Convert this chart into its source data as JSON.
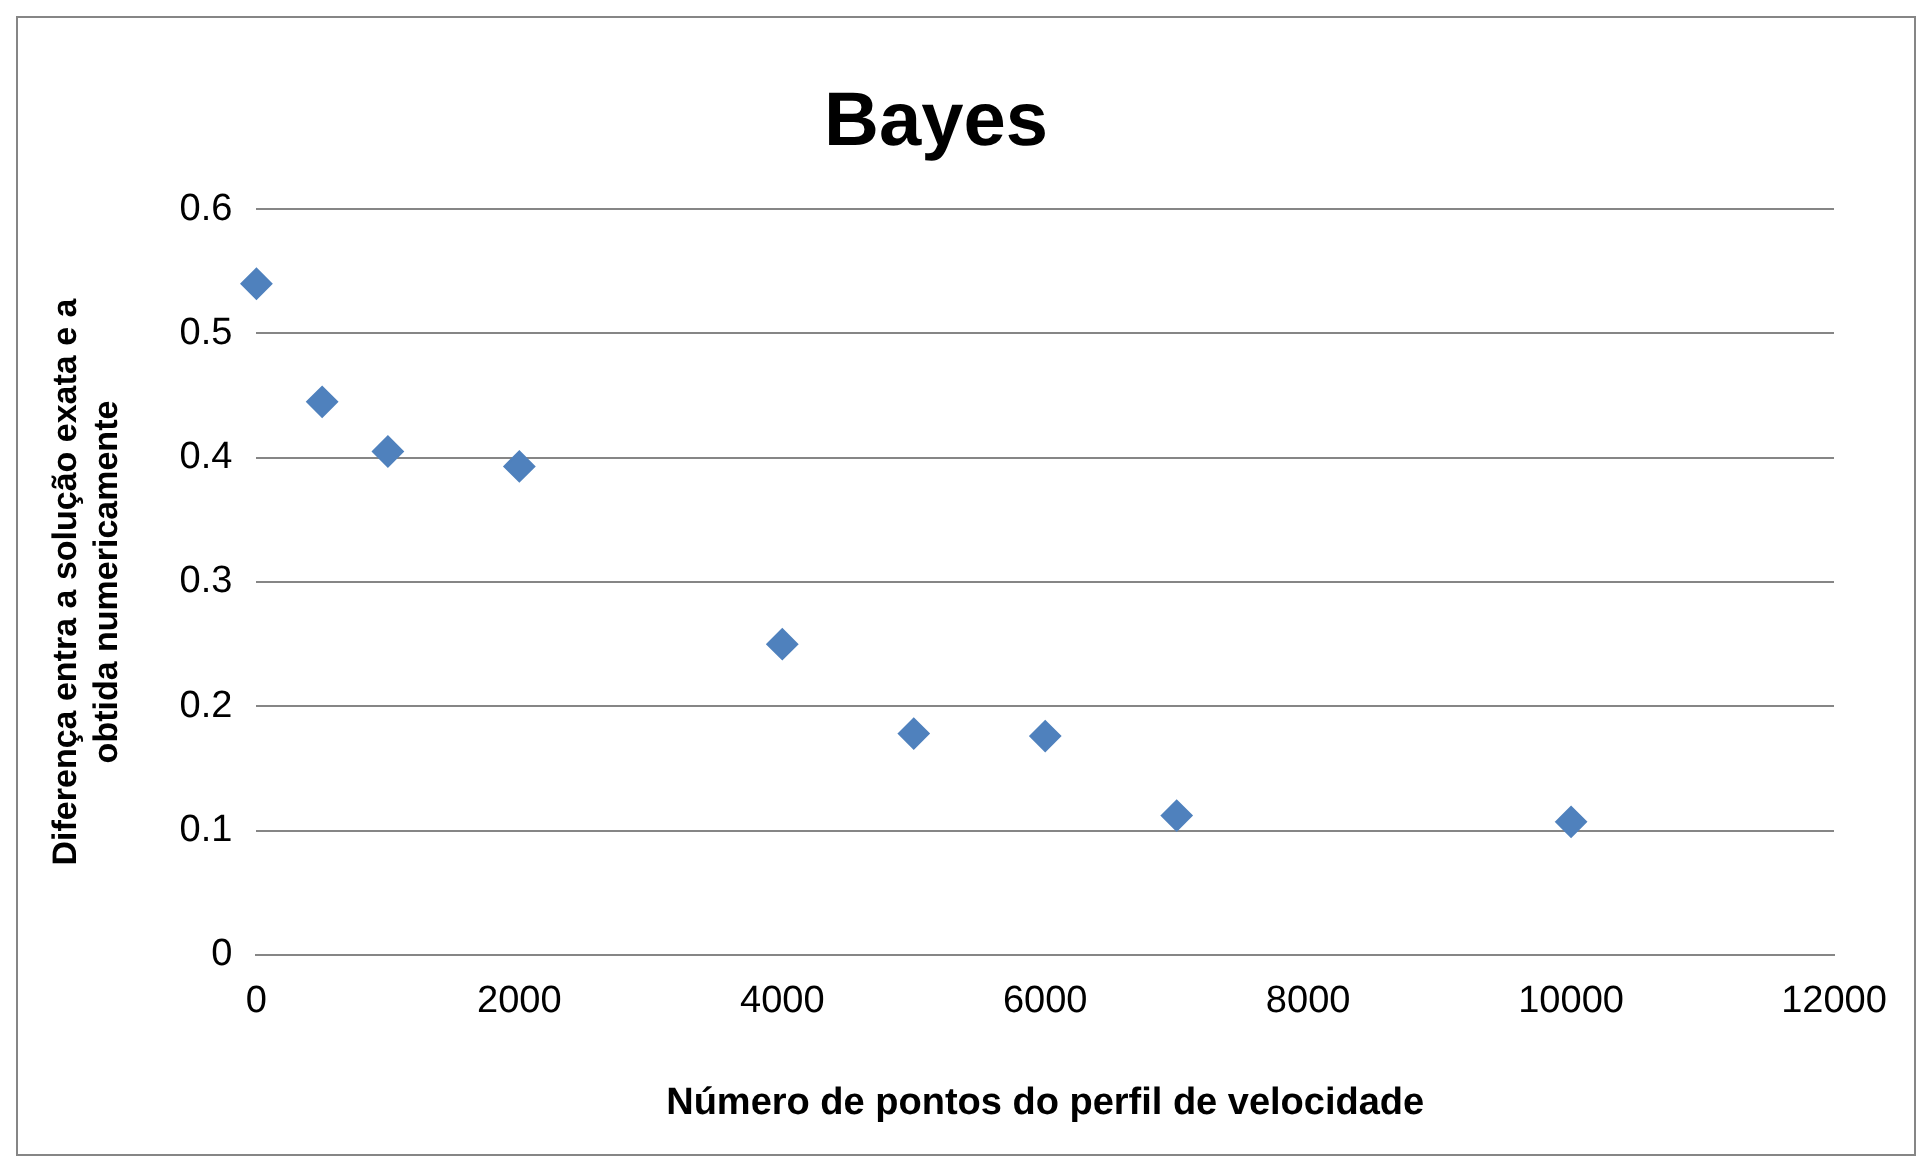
{
  "chart_data": {
    "type": "scatter",
    "title": "Bayes",
    "xlabel": "Número de pontos do perfil de velocidade",
    "ylabel": "Diferença entra a solução exata e a obtida numericamente",
    "series": [
      {
        "color": "#4f81bd",
        "x": [
          0,
          500,
          1000,
          2000,
          4000,
          5000,
          6000,
          7000,
          10000
        ],
        "values": [
          0.54,
          0.445,
          0.405,
          0.393,
          0.25,
          0.178,
          0.176,
          0.112,
          0.107
        ]
      }
    ],
    "xlim": [
      0,
      12000
    ],
    "xticks": [
      0,
      2000,
      4000,
      6000,
      8000,
      10000,
      12000
    ],
    "ylim": [
      0,
      0.6
    ],
    "yticks": [
      0,
      0.1,
      0.2,
      0.3,
      0.4,
      0.5,
      0.6
    ],
    "grid": "y",
    "legend": false,
    "marker": "diamond"
  }
}
